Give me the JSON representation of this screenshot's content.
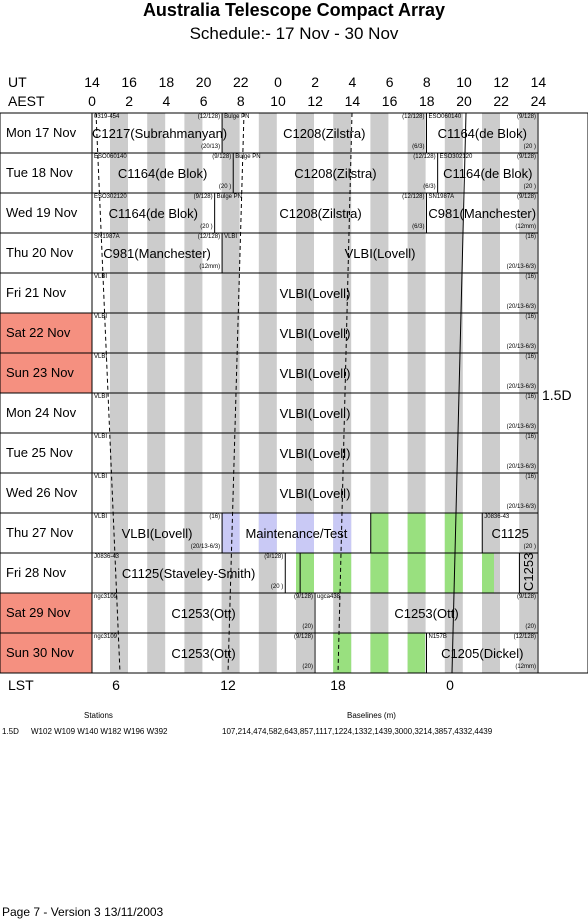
{
  "title": "Australia Telescope Compact Array",
  "subtitle": "Schedule:- 17 Nov - 30 Nov",
  "ut_label": "UT",
  "aest_label": "AEST",
  "ut_ticks": [
    "14",
    "16",
    "18",
    "20",
    "22",
    "0",
    "2",
    "4",
    "6",
    "8",
    "10",
    "12",
    "14"
  ],
  "aest_ticks": [
    "0",
    "2",
    "4",
    "6",
    "8",
    "10",
    "12",
    "14",
    "16",
    "18",
    "20",
    "22",
    "24"
  ],
  "lst_label": "LST",
  "lst_ticks": [
    "6",
    "12",
    "18",
    "0"
  ],
  "config_label": "1.5D",
  "days": [
    {
      "name": "Mon  17 Nov",
      "weekend": false
    },
    {
      "name": "Tue   18 Nov",
      "weekend": false
    },
    {
      "name": "Wed  19 Nov",
      "weekend": false
    },
    {
      "name": "Thu   20 Nov",
      "weekend": false
    },
    {
      "name": "Fri    21 Nov",
      "weekend": false
    },
    {
      "name": "Sat   22 Nov",
      "weekend": true
    },
    {
      "name": "Sun   23 Nov",
      "weekend": true
    },
    {
      "name": "Mon  24 Nov",
      "weekend": false
    },
    {
      "name": "Tue   25 Nov",
      "weekend": false
    },
    {
      "name": "Wed  26 Nov",
      "weekend": false
    },
    {
      "name": "Thu   27 Nov",
      "weekend": false
    },
    {
      "name": "Fri    28 Nov",
      "weekend": false
    },
    {
      "name": "Sat   29 Nov",
      "weekend": true
    },
    {
      "name": "Sun   30 Nov",
      "weekend": true
    }
  ],
  "blocks": [
    {
      "row": 0,
      "start": 0,
      "end": 3.5,
      "name": "C1217(Subrahmanyan)",
      "src": "0319-454",
      "freq": "(12/128)",
      "band": "(20/13)"
    },
    {
      "row": 0,
      "start": 3.5,
      "end": 9,
      "name": "C1208(Zilstra)",
      "src": "Bulge PN",
      "freq": "(12/128)",
      "band": "(6/3)"
    },
    {
      "row": 0,
      "start": 9,
      "end": 12,
      "name": "C1164(de Blok)",
      "src": "ESO060140",
      "freq": "(9/128)",
      "band": "(20 )"
    },
    {
      "row": 1,
      "start": 0,
      "end": 3.8,
      "name": "C1164(de Blok)",
      "src": "ESO060140",
      "freq": "(9/128)",
      "band": "(20 )"
    },
    {
      "row": 1,
      "start": 3.8,
      "end": 9.3,
      "name": "C1208(Zilstra)",
      "src": "Bulge PN",
      "freq": "(12/128)",
      "band": "(6/3)"
    },
    {
      "row": 1,
      "start": 9.3,
      "end": 12,
      "name": "C1164(de Blok)",
      "src": "ESO302120",
      "freq": "(9/128)",
      "band": "(20 )"
    },
    {
      "row": 2,
      "start": 0,
      "end": 3.3,
      "name": "C1164(de Blok)",
      "src": "ESO302120",
      "freq": "(9/128)",
      "band": "(20 )"
    },
    {
      "row": 2,
      "start": 3.3,
      "end": 9,
      "name": "C1208(Zilstra)",
      "src": "Bulge PN",
      "freq": "(12/128)",
      "band": "(6/3)"
    },
    {
      "row": 2,
      "start": 9,
      "end": 12,
      "name": "C981(Manchester)",
      "src": "SN1987A",
      "freq": "(9/128)",
      "band": "(12mm)"
    },
    {
      "row": 3,
      "start": 0,
      "end": 3.5,
      "name": "C981(Manchester)",
      "src": "SN1987A",
      "freq": "(12/128)",
      "band": "(12mm)"
    },
    {
      "row": 3,
      "start": 3.5,
      "end": 12,
      "name": "VLBI(Lovell)",
      "src": "VLBI",
      "freq": "(16)",
      "band": "(20/13-6/3)"
    },
    {
      "row": 4,
      "start": 0,
      "end": 12,
      "name": "VLBI(Lovell)",
      "src": "VLBI",
      "freq": "(16)",
      "band": "(20/13-6/3)"
    },
    {
      "row": 5,
      "start": 0,
      "end": 12,
      "name": "VLBI(Lovell)",
      "src": "VLBI",
      "freq": "(16)",
      "band": "(20/13-6/3)"
    },
    {
      "row": 6,
      "start": 0,
      "end": 12,
      "name": "VLBI(Lovell)",
      "src": "VLBI",
      "freq": "(16)",
      "band": "(20/13-6/3)"
    },
    {
      "row": 7,
      "start": 0,
      "end": 12,
      "name": "VLBI(Lovell)",
      "src": "VLBI",
      "freq": "(16)",
      "band": "(20/13-6/3)"
    },
    {
      "row": 8,
      "start": 0,
      "end": 12,
      "name": "VLBI(Lovell)",
      "src": "VLBI",
      "freq": "(16)",
      "band": "(20/13-6/3)"
    },
    {
      "row": 9,
      "start": 0,
      "end": 12,
      "name": "VLBI(Lovell)",
      "src": "VLBI",
      "freq": "(16)",
      "band": "(20/13-6/3)"
    },
    {
      "row": 10,
      "start": 0,
      "end": 3.5,
      "name": "VLBI(Lovell)",
      "src": "VLBI",
      "freq": "(16)",
      "band": "(20/13-6/3)"
    },
    {
      "row": 10,
      "start": 3.5,
      "end": 7.5,
      "name": "Maintenance/Test",
      "src": "",
      "freq": "",
      "band": ""
    },
    {
      "row": 10,
      "start": 7.5,
      "end": 10.5,
      "name": "",
      "src": "",
      "freq": "",
      "band": ""
    },
    {
      "row": 10,
      "start": 10.5,
      "end": 12,
      "name": "C1125",
      "src": "J0836-43",
      "freq": "",
      "band": "(20 )"
    },
    {
      "row": 11,
      "start": 0,
      "end": 5.2,
      "name": "C1125(Staveley-Smith)",
      "src": "J0836-43",
      "freq": "(9/128)",
      "band": "(20 )"
    },
    {
      "row": 11,
      "start": 5.2,
      "end": 5.6,
      "name": "",
      "src": "",
      "freq": "",
      "band": ""
    },
    {
      "row": 11,
      "start": 5.6,
      "end": 11.5,
      "name": "",
      "src": "",
      "freq": "",
      "band": ""
    },
    {
      "row": 11,
      "start": 11.5,
      "end": 12,
      "name": "C1253",
      "src": "",
      "freq": "",
      "band": ""
    },
    {
      "row": 12,
      "start": 0,
      "end": 6,
      "name": "C1253(Ott)",
      "src": "ngc3109",
      "freq": "(9/128)",
      "band": "(20)"
    },
    {
      "row": 12,
      "start": 6,
      "end": 12,
      "name": "C1253(Ott)",
      "src": "ugca438",
      "freq": "(9/128)",
      "band": "(20)"
    },
    {
      "row": 13,
      "start": 0,
      "end": 6,
      "name": "C1253(Ott)",
      "src": "ngc3109",
      "freq": "(9/128)",
      "band": "(20)"
    },
    {
      "row": 13,
      "start": 6,
      "end": 9,
      "name": "",
      "src": "",
      "freq": "",
      "band": ""
    },
    {
      "row": 13,
      "start": 9,
      "end": 12,
      "name": "C1205(Dickel)",
      "src": "N157B",
      "freq": "(12/128)",
      "band": "(12mm)"
    }
  ],
  "footer": {
    "stations_label": "Stations",
    "baselines_label": "Baselines (m)",
    "config": "1.5D",
    "stations": "W102 W109 W140 W182 W196 W392",
    "baselines": "107,214,474,582,643,857,1117,1224,1332,1439,3000,3214,3857,4332,4439"
  },
  "page_footer": "Page 7 - Version 3  13/11/2003",
  "colors": {
    "weekend": "#f59080",
    "stripe": "#cccccc",
    "maint": "#c9c9f5",
    "green": "#99e07f"
  }
}
